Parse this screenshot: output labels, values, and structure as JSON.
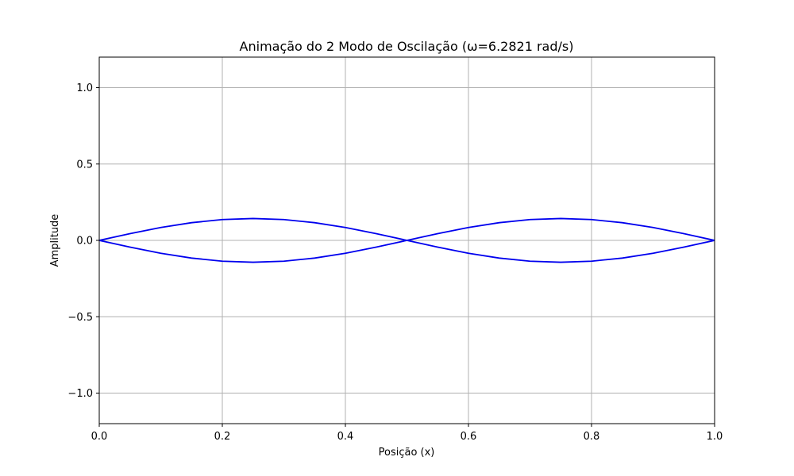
{
  "chart_data": {
    "type": "line",
    "title": "Animação do 2 Modo de Oscilação (ω=6.2821 rad/s)",
    "xlabel": "Posição (x)",
    "ylabel": "Amplitude",
    "xlim": [
      0.0,
      1.0
    ],
    "ylim": [
      -1.2,
      1.2
    ],
    "xticks": [
      0.0,
      0.2,
      0.4,
      0.6,
      0.8,
      1.0
    ],
    "xtick_labels": [
      "0.0",
      "0.2",
      "0.4",
      "0.6",
      "0.8",
      "1.0"
    ],
    "yticks": [
      -1.0,
      -0.5,
      0.0,
      0.5,
      1.0
    ],
    "ytick_labels": [
      "−1.0",
      "−0.5",
      "0.0",
      "0.5",
      "1.0"
    ],
    "grid": true,
    "line_color": "#0000ee",
    "series": [
      {
        "x": [
          0.0,
          0.05,
          0.1,
          0.15,
          0.2,
          0.25,
          0.3,
          0.35,
          0.4,
          0.45,
          0.5,
          0.55,
          0.6,
          0.65,
          0.7,
          0.75,
          0.8,
          0.85,
          0.9,
          0.95,
          1.0
        ],
        "values": [
          0.0,
          0.0443,
          0.0842,
          0.1159,
          0.1362,
          0.1432,
          0.1362,
          0.1159,
          0.0842,
          0.0443,
          0.0,
          -0.0443,
          -0.0842,
          -0.1159,
          -0.1362,
          -0.1432,
          -0.1362,
          -0.1159,
          -0.0842,
          -0.0443,
          0.0
        ]
      },
      {
        "x": [
          0.0,
          0.05,
          0.1,
          0.15,
          0.2,
          0.25,
          0.3,
          0.35,
          0.4,
          0.45,
          0.5,
          0.55,
          0.6,
          0.65,
          0.7,
          0.75,
          0.8,
          0.85,
          0.9,
          0.95,
          1.0
        ],
        "values": [
          0.0,
          -0.0443,
          -0.0842,
          -0.1159,
          -0.1362,
          -0.1432,
          -0.1362,
          -0.1159,
          -0.0842,
          -0.0443,
          0.0,
          0.0443,
          0.0842,
          0.1159,
          0.1362,
          0.1432,
          0.1362,
          0.1159,
          0.0842,
          0.0443,
          0.0
        ]
      }
    ]
  }
}
